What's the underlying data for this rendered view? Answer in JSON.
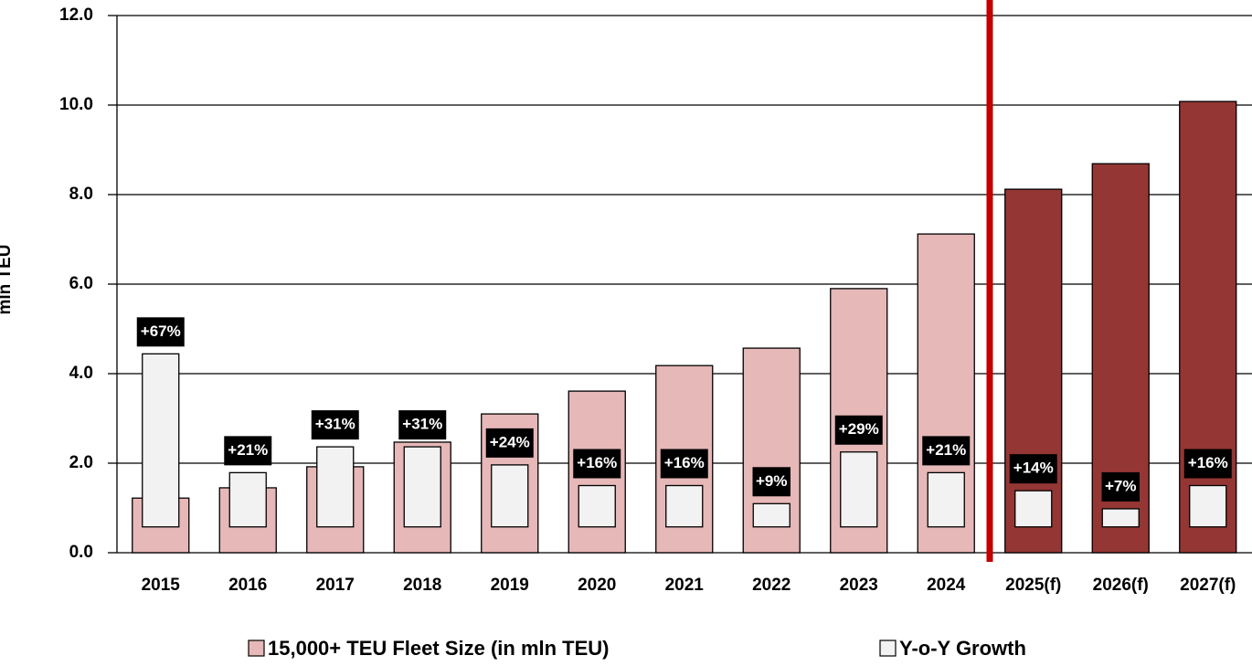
{
  "chart_data": {
    "type": "bar",
    "y_label": "mln TEU",
    "categories": [
      "2015",
      "2016",
      "2017",
      "2018",
      "2019",
      "2020",
      "2021",
      "2022",
      "2023",
      "2024",
      "2025(f)",
      "2026(f)",
      "2027(f)"
    ],
    "series": [
      {
        "name": "15,000+ TEU Fleet Size (in mln TEU)",
        "color": "#e6b8b7",
        "colors": [
          "#e6b8b7",
          "#e6b8b7",
          "#e6b8b7",
          "#e6b8b7",
          "#e6b8b7",
          "#e6b8b7",
          "#e6b8b7",
          "#e6b8b7",
          "#e6b8b7",
          "#e6b8b7",
          "#943634",
          "#943634",
          "#943634"
        ],
        "values": [
          1.22,
          1.45,
          1.92,
          2.47,
          3.1,
          3.61,
          4.18,
          4.57,
          5.9,
          7.12,
          8.12,
          8.69,
          10.08
        ]
      },
      {
        "name": "Y-o-Y Growth",
        "color": "#f2f2f2",
        "axis": "y2",
        "values": [
          67,
          21,
          31,
          31,
          24,
          16,
          16,
          9,
          29,
          21,
          14,
          7,
          16
        ],
        "value_labels": [
          "+67%",
          "+21%",
          "+31%",
          "+31%",
          "+24%",
          "+16%",
          "+16%",
          "+9%",
          "+29%",
          "+21%",
          "+14%",
          "+7%",
          "+16%"
        ]
      }
    ],
    "ylim": [
      0,
      12
    ],
    "yticks": [
      {
        "value": 0,
        "label": "0.0"
      },
      {
        "value": 2,
        "label": "2.0"
      },
      {
        "value": 4,
        "label": "4.0"
      },
      {
        "value": 6,
        "label": "6.0"
      },
      {
        "value": 8,
        "label": "8.0"
      },
      {
        "value": 10,
        "label": "10.0"
      },
      {
        "value": 12,
        "label": "12.0"
      }
    ],
    "y2lim": [
      -10,
      198
    ],
    "grid": true
  }
}
